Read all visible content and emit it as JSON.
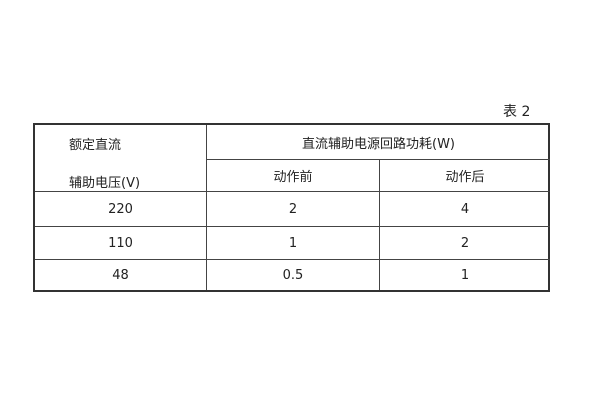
{
  "caption": "表 2",
  "header": {
    "col1_line1": "额定直流",
    "col1_line2": "辅助电压(V)",
    "group": "直流辅助电源回路功耗(W)",
    "before": "动作前",
    "after": "动作后"
  },
  "rows": [
    {
      "voltage": "220",
      "before": "2",
      "after": "4"
    },
    {
      "voltage": "110",
      "before": "1",
      "after": "2"
    },
    {
      "voltage": "48",
      "before": "0.5",
      "after": "1"
    }
  ]
}
